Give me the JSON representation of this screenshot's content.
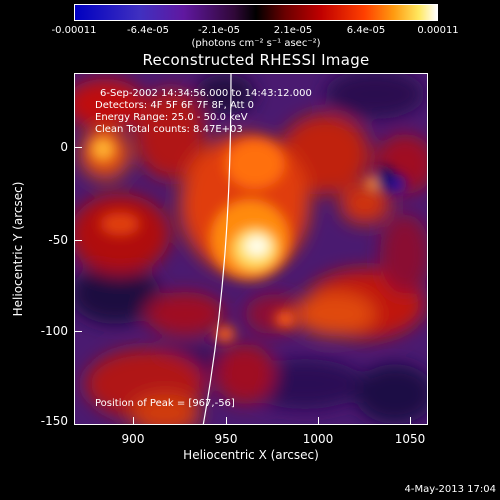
{
  "colorbar": {
    "tick_labels": [
      "-0.00011",
      "-6.4e-05",
      "-2.1e-05",
      "2.1e-05",
      "6.4e-05",
      "0.00011"
    ],
    "unit_label": "(photons cm⁻² s⁻¹ asec⁻²)"
  },
  "title": "Reconstructed RHESSI Image",
  "info": {
    "time_range": "6-Sep-2002 14:34:56.000 to 14:43:12.000",
    "detectors": "Detectors: 4F 5F 6F 7F 8F, Att 0",
    "energy": "Energy Range: 25.0 - 50.0 keV",
    "clean": "Clean     Total counts: 8.47E+03",
    "peak": "Position of Peak = [967,-56]"
  },
  "axes": {
    "xlabel": "Heliocentric X (arcsec)",
    "ylabel": "Heliocentric Y (arcsec)",
    "x_ticks": [
      "900",
      "950",
      "1000",
      "1050"
    ],
    "y_ticks": [
      "0",
      "-50",
      "-100",
      "-150"
    ]
  },
  "footer": {
    "date_stamp": "4-May-2013 17:04"
  },
  "colors": {
    "limb": "#ffffff"
  }
}
